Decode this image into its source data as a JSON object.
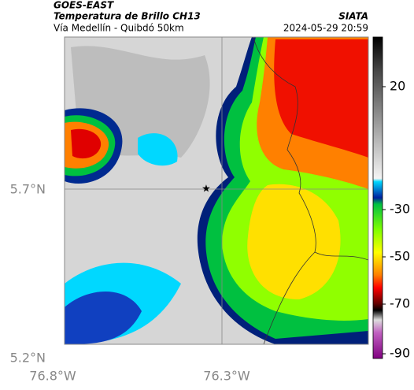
{
  "header": {
    "product": "GOES-EAST",
    "title": "Temperatura de Brillo CH13",
    "subtitle": "Vía Medellín - Quibdó 50km",
    "source": "SIATA",
    "timestamp": "2024-05-29 20:59"
  },
  "map": {
    "lat_labels": [
      "5.7°N",
      "5.2°N"
    ],
    "lon_labels": [
      "76.8°W",
      "76.3°W"
    ]
  },
  "colorbar": {
    "ticks": [
      20,
      -30,
      -50,
      -70,
      -90
    ]
  }
}
